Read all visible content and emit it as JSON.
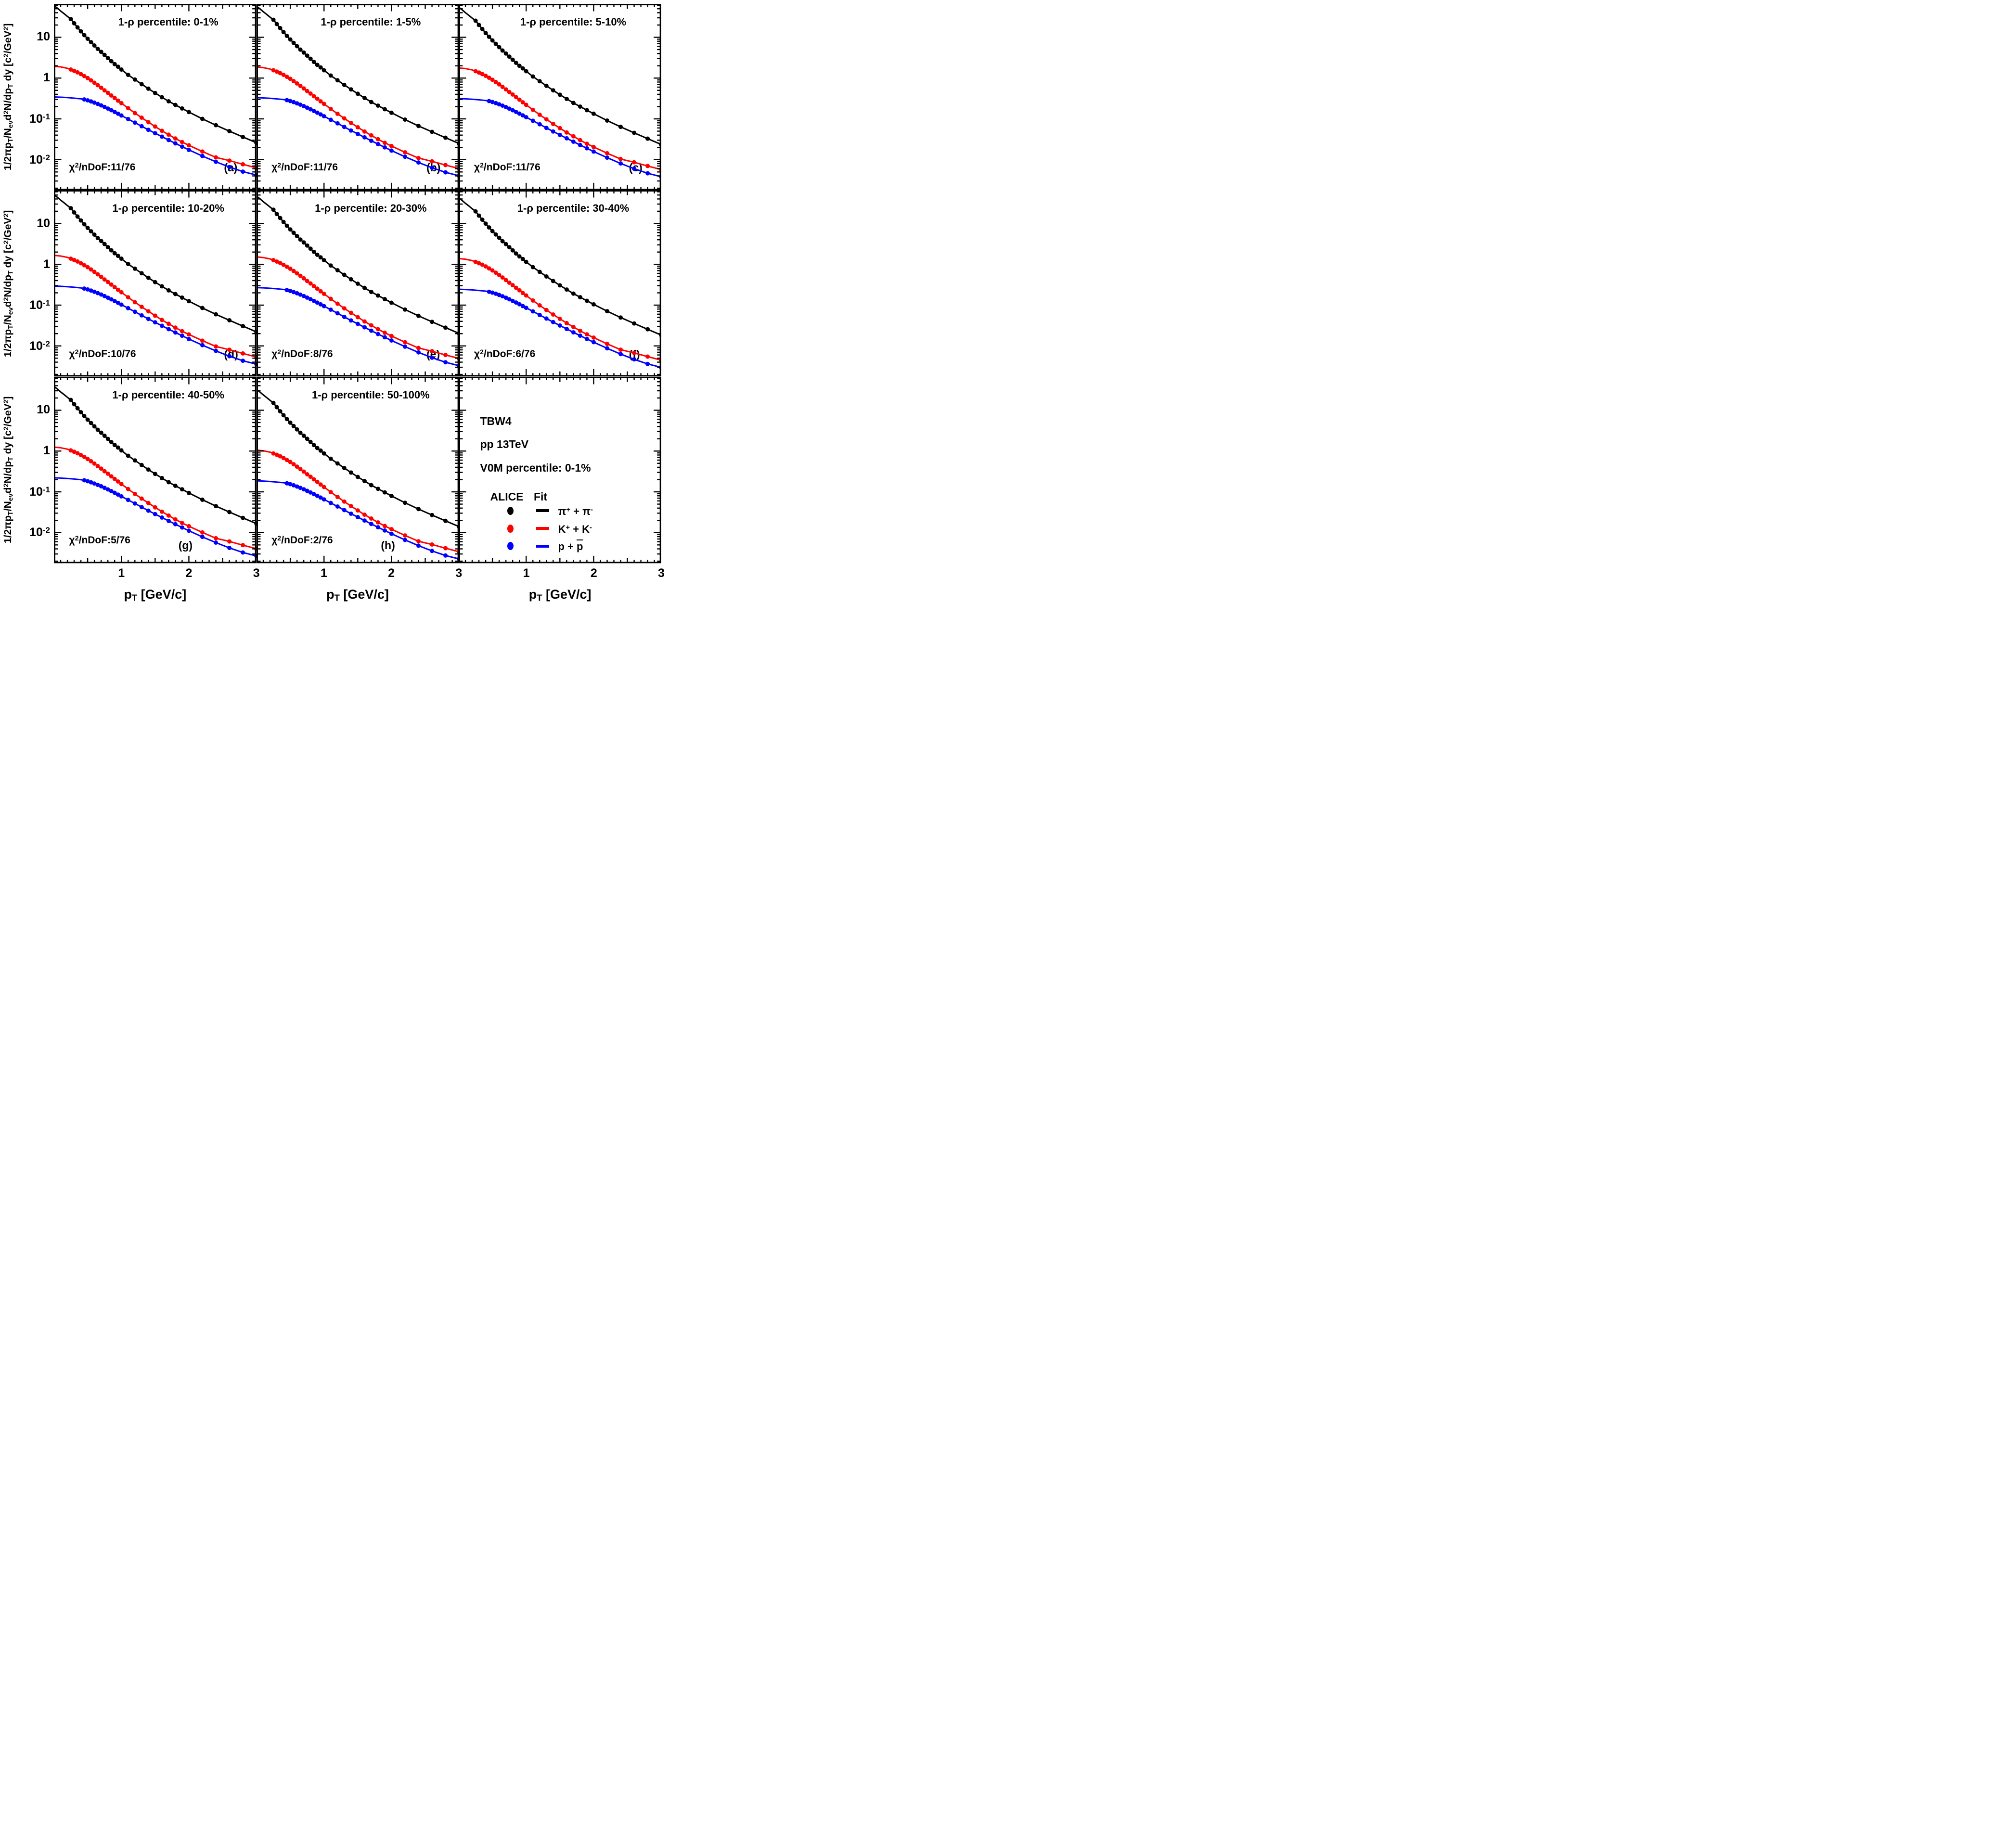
{
  "figure": {
    "background": "#ffffff",
    "frame_color": "#000000"
  },
  "labels": {
    "chi2_prefix": [
      {
        "t": "χ"
      },
      {
        "t": "2",
        "s": "sup"
      },
      {
        "t": "/nDoF:"
      }
    ]
  },
  "axes": {
    "x_label_segments": [
      {
        "t": "p"
      },
      {
        "t": "T",
        "s": "sub"
      },
      {
        "t": " [GeV/c]"
      }
    ],
    "y_label_segments": [
      {
        "t": "1/2"
      },
      {
        "t": "π"
      },
      {
        "t": "p"
      },
      {
        "t": "T",
        "s": "sub"
      },
      {
        "t": "/N"
      },
      {
        "t": "ev",
        "s": "sub"
      },
      {
        "t": "d"
      },
      {
        "t": "2",
        "s": "sup"
      },
      {
        "t": "N/dp"
      },
      {
        "t": "T",
        "s": "sub"
      },
      {
        "t": " dy [c"
      },
      {
        "t": "2",
        "s": "sup"
      },
      {
        "t": "/GeV"
      },
      {
        "t": "2",
        "s": "sup"
      },
      {
        "t": "]"
      }
    ],
    "x_ticks": [
      {
        "v": 1,
        "label": "1"
      },
      {
        "v": 2,
        "label": "2"
      },
      {
        "v": 3,
        "label": "3"
      }
    ],
    "y_ticks": [
      {
        "v": 10,
        "segments": [
          {
            "t": "10"
          }
        ]
      },
      {
        "v": 1,
        "segments": [
          {
            "t": "1"
          }
        ]
      },
      {
        "v": 0.1,
        "segments": [
          {
            "t": "10"
          },
          {
            "t": "-1",
            "s": "sup"
          }
        ]
      },
      {
        "v": 0.01,
        "segments": [
          {
            "t": "10"
          },
          {
            "t": "-2",
            "s": "sup"
          }
        ]
      }
    ]
  },
  "chart_data": {
    "type": "line+scatter",
    "x_label": "pT [GeV/c]",
    "y_label": "1/2πpT/Nev d²N/dpT dy [c²/GeV²]",
    "x_range": [
      0,
      3
    ],
    "y_range": [
      0.00178,
      66
    ],
    "y_scale": "log",
    "grid": false,
    "series_base": [
      {
        "name": "pion",
        "label": "π+ + π-",
        "color": "#000000",
        "x": [
          0.25,
          0.3,
          0.35,
          0.4,
          0.45,
          0.5,
          0.55,
          0.6,
          0.65,
          0.7,
          0.75,
          0.8,
          0.85,
          0.9,
          0.95,
          1.0,
          1.1,
          1.2,
          1.3,
          1.4,
          1.5,
          1.6,
          1.7,
          1.8,
          1.9,
          2.0,
          2.2,
          2.4,
          2.6,
          2.8,
          3.0
        ],
        "y": [
          28,
          22,
          17.5,
          14,
          11.3,
          9.2,
          7.6,
          6.3,
          5.2,
          4.4,
          3.7,
          3.1,
          2.6,
          2.2,
          1.9,
          1.62,
          1.2,
          0.92,
          0.71,
          0.55,
          0.43,
          0.34,
          0.27,
          0.22,
          0.18,
          0.147,
          0.1,
          0.07,
          0.05,
          0.036,
          0.026
        ],
        "fit_x": [
          0,
          0.05,
          0.1,
          0.15,
          0.2
        ],
        "fit_y": [
          60,
          52,
          44,
          38,
          32.5
        ]
      },
      {
        "name": "kaon",
        "label": "K+ + K-",
        "color": "#ff0000",
        "x": [
          0.25,
          0.3,
          0.35,
          0.4,
          0.45,
          0.5,
          0.55,
          0.6,
          0.65,
          0.7,
          0.75,
          0.8,
          0.85,
          0.9,
          0.95,
          1.0,
          1.1,
          1.2,
          1.3,
          1.4,
          1.5,
          1.6,
          1.7,
          1.8,
          1.9,
          2.0,
          2.2,
          2.4,
          2.6,
          2.8,
          3.0
        ],
        "y": [
          1.62,
          1.5,
          1.38,
          1.25,
          1.12,
          1.0,
          0.88,
          0.77,
          0.67,
          0.58,
          0.5,
          0.435,
          0.375,
          0.325,
          0.28,
          0.243,
          0.183,
          0.139,
          0.107,
          0.083,
          0.065,
          0.051,
          0.041,
          0.033,
          0.027,
          0.0225,
          0.0158,
          0.0114,
          0.0095,
          0.0077,
          0.0063
        ],
        "fit_x": [
          0,
          0.1,
          0.2
        ],
        "fit_y": [
          1.95,
          1.88,
          1.74
        ]
      },
      {
        "name": "proton",
        "label": "p + p̄",
        "color": "#0000ff",
        "x": [
          0.45,
          0.5,
          0.55,
          0.6,
          0.65,
          0.7,
          0.75,
          0.8,
          0.85,
          0.9,
          0.95,
          1.0,
          1.1,
          1.2,
          1.3,
          1.4,
          1.5,
          1.6,
          1.7,
          1.8,
          1.9,
          2.0,
          2.2,
          2.4,
          2.6,
          2.8,
          3.0
        ],
        "y": [
          0.3,
          0.285,
          0.268,
          0.25,
          0.232,
          0.214,
          0.196,
          0.179,
          0.163,
          0.148,
          0.134,
          0.121,
          0.099,
          0.081,
          0.066,
          0.054,
          0.0445,
          0.0367,
          0.0303,
          0.0251,
          0.0209,
          0.0174,
          0.0123,
          0.0089,
          0.0066,
          0.0051,
          0.0042
        ],
        "fit_x": [
          0,
          0.1,
          0.2,
          0.3,
          0.4
        ],
        "fit_y": [
          0.345,
          0.34,
          0.332,
          0.322,
          0.31
        ]
      }
    ],
    "panels": [
      {
        "letter": "(a)",
        "title": "1-ρ percentile: 0-1%",
        "chi2": "11/76",
        "scale": 1.0,
        "letter_x": 0.84,
        "letter_y": 0.85
      },
      {
        "letter": "(b)",
        "title": "1-ρ percentile: 1-5%",
        "chi2": "11/76",
        "scale": 0.96,
        "letter_x": 0.84,
        "letter_y": 0.85
      },
      {
        "letter": "(c)",
        "title": "1-ρ percentile: 5-10%",
        "chi2": "11/76",
        "scale": 0.91,
        "letter_x": 0.84,
        "letter_y": 0.85
      },
      {
        "letter": "(d)",
        "title": "1-ρ percentile: 10-20%",
        "chi2": "10/76",
        "scale": 0.85,
        "letter_x": 0.84,
        "letter_y": 0.85
      },
      {
        "letter": "(e)",
        "title": "1-ρ percentile: 20-30%",
        "chi2": "8/76",
        "scale": 0.78,
        "letter_x": 0.84,
        "letter_y": 0.85
      },
      {
        "letter": "(f)",
        "title": "1-ρ percentile: 30-40%",
        "chi2": "6/76",
        "scale": 0.71,
        "letter_x": 0.84,
        "letter_y": 0.85
      },
      {
        "letter": "(g)",
        "title": "1-ρ percentile: 40-50%",
        "chi2": "5/76",
        "scale": 0.64,
        "letter_x": 0.615,
        "letter_y": 0.875
      },
      {
        "letter": "(h)",
        "title": "1-ρ percentile: 50-100%",
        "chi2": "2/76",
        "scale": 0.54,
        "letter_x": 0.615,
        "letter_y": 0.875
      }
    ]
  },
  "legend_panel": {
    "model": "TBW4",
    "system": "pp 13TeV",
    "v0m": "V0M percentile: 0-1%",
    "col_data": "ALICE",
    "col_fit": "Fit",
    "entries": [
      {
        "name": "pion",
        "color": "#000000",
        "segments": [
          {
            "t": "π"
          },
          {
            "t": "+",
            "s": "sup"
          },
          {
            "t": " + "
          },
          {
            "t": "π"
          },
          {
            "t": "-",
            "s": "sup"
          }
        ]
      },
      {
        "name": "kaon",
        "color": "#ff0000",
        "segments": [
          {
            "t": "K"
          },
          {
            "t": "+",
            "s": "sup"
          },
          {
            "t": " + K"
          },
          {
            "t": "-",
            "s": "sup"
          }
        ]
      },
      {
        "name": "proton",
        "color": "#0000ff",
        "segments": [
          {
            "t": "p + "
          },
          {
            "t": "p",
            "s": "over"
          }
        ]
      }
    ]
  }
}
